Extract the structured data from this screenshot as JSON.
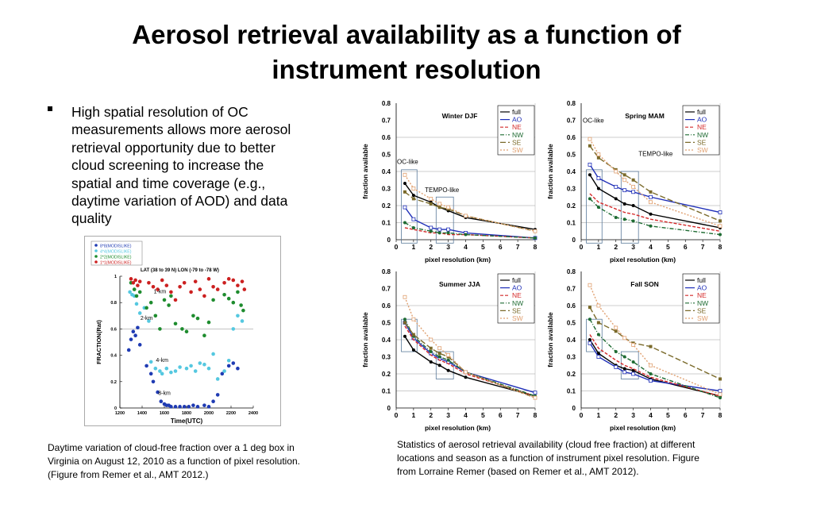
{
  "slide": {
    "title_lines": [
      "Aerosol retrieval availability as a function of",
      "instrument resolution"
    ],
    "bullet_lines": [
      "High spatial resolution of OC",
      "measurements allows more aerosol",
      "retrieval opportunity due to better",
      "cloud screening to increase the",
      "spatial and time coverage (e.g.,",
      "daytime variation of AOD) and data",
      "quality"
    ],
    "caption_left_lines": [
      "Daytime variation of cloud-free fraction over a 1 deg box in",
      "Virginia on August 12, 2010 as a function of pixel resolution.",
      "(Figure from Remer et al., AMT 2012.)"
    ],
    "caption_right_lines": [
      "Statistics of aerosol retrieval availability (cloud free fraction) at different",
      "locations and season as a function of instrument pixel resolution. Figure",
      "from Lorraine Remer (based on Remer et al., AMT 2012)."
    ]
  },
  "chart_data": [
    {
      "type": "scatter",
      "subtitle": "LAT (38 to 39 N) LON (-79 to -78 W)",
      "xlabel": "Time(UTC)",
      "ylabel": "FRACTION(Rat)",
      "xlim": [
        1200,
        2400
      ],
      "ylim": [
        0,
        1
      ],
      "x_ticks": [
        1200,
        1400,
        1600,
        1800,
        2000,
        2200,
        2400
      ],
      "y_ticks": [
        0,
        0.2,
        0.4,
        0.6,
        0.8,
        1
      ],
      "legend": [
        "8*8(MODISLIKE)",
        "4*4(MODISLIKE)",
        "2*2(MODISLIKE)",
        "1*1(MODISLIKE)"
      ],
      "annotations": [
        "1-km",
        "2-km",
        "4-km",
        "8-km"
      ],
      "series": [
        {
          "name": "8*8(MODISLIKE)",
          "color": "#1f3bb3",
          "x": [
            1280,
            1300,
            1320,
            1340,
            1360,
            1380,
            1440,
            1480,
            1500,
            1540,
            1570,
            1600,
            1620,
            1640,
            1660,
            1700,
            1740,
            1780,
            1820,
            1860,
            1900,
            1960,
            2000,
            2040,
            2080,
            2120,
            2180,
            2220,
            2260
          ],
          "y": [
            0.44,
            0.52,
            0.58,
            0.55,
            0.61,
            0.48,
            0.32,
            0.26,
            0.2,
            0.12,
            0.05,
            0.03,
            0.02,
            0.02,
            0.01,
            0.01,
            0.01,
            0.01,
            0.01,
            0.02,
            0.01,
            0.02,
            0.01,
            0.05,
            0.1,
            0.26,
            0.32,
            0.34,
            0.3
          ]
        },
        {
          "name": "4*4(MODISLIKE)",
          "color": "#55c8e0",
          "x": [
            1290,
            1310,
            1330,
            1350,
            1380,
            1420,
            1460,
            1480,
            1520,
            1560,
            1580,
            1620,
            1660,
            1700,
            1740,
            1800,
            1840,
            1880,
            1920,
            1960,
            2000,
            2040,
            2080,
            2140,
            2180,
            2220,
            2260,
            2300
          ],
          "y": [
            0.88,
            0.86,
            0.85,
            0.79,
            0.72,
            0.76,
            0.66,
            0.35,
            0.3,
            0.28,
            0.26,
            0.3,
            0.27,
            0.28,
            0.31,
            0.3,
            0.32,
            0.28,
            0.34,
            0.33,
            0.3,
            0.41,
            0.22,
            0.28,
            0.36,
            0.6,
            0.7,
            0.66
          ]
        },
        {
          "name": "2*2(MODISLIKE)",
          "color": "#1e8c2e",
          "x": [
            1300,
            1330,
            1350,
            1380,
            1440,
            1480,
            1520,
            1560,
            1600,
            1640,
            1660,
            1700,
            1760,
            1800,
            1860,
            1900,
            1960,
            2000,
            2040,
            2140,
            2180,
            2220,
            2260,
            2290,
            2310
          ],
          "y": [
            0.95,
            0.9,
            0.85,
            0.88,
            0.76,
            0.8,
            0.7,
            0.6,
            0.82,
            0.78,
            0.85,
            0.64,
            0.6,
            0.58,
            0.7,
            0.68,
            0.55,
            0.65,
            0.82,
            0.86,
            0.83,
            0.8,
            0.88,
            0.78,
            0.74
          ]
        },
        {
          "name": "1*1(MODISLIKE)",
          "color": "#cc2020",
          "x": [
            1300,
            1320,
            1340,
            1360,
            1380,
            1460,
            1500,
            1540,
            1580,
            1620,
            1660,
            1700,
            1740,
            1780,
            1840,
            1880,
            1920,
            1960,
            2000,
            2040,
            2080,
            2140,
            2180,
            2220,
            2260,
            2300,
            2320
          ],
          "y": [
            0.98,
            0.95,
            0.97,
            0.93,
            0.96,
            0.95,
            0.92,
            0.9,
            0.97,
            0.93,
            0.88,
            0.82,
            0.92,
            0.95,
            0.88,
            0.96,
            0.9,
            0.85,
            0.98,
            0.92,
            0.9,
            0.95,
            0.98,
            0.97,
            0.93,
            0.96,
            0.9
          ]
        }
      ]
    },
    {
      "type": "line",
      "panels": [
        {
          "title": "Winter DJF",
          "xlabel": "pixel resolution (km)",
          "ylabel": "fraction available",
          "xlim": [
            0,
            8
          ],
          "ylim": [
            0,
            0.8
          ],
          "x": [
            0.5,
            1,
            2,
            2.5,
            3,
            4,
            8
          ],
          "annotations": [
            "OC-like",
            "TEMPO-like"
          ],
          "series": [
            {
              "name": "full",
              "values": [
                0.33,
                0.26,
                0.22,
                0.19,
                0.17,
                0.13,
                0.06
              ]
            },
            {
              "name": "AO",
              "values": [
                0.19,
                0.12,
                0.07,
                0.06,
                0.06,
                0.04,
                0.01
              ]
            },
            {
              "name": "NE",
              "values": [
                0.07,
                0.06,
                0.04,
                0.04,
                0.03,
                0.03,
                0.01
              ]
            },
            {
              "name": "NW",
              "values": [
                0.1,
                0.07,
                0.05,
                0.04,
                0.04,
                0.03,
                0.01
              ]
            },
            {
              "name": "SE",
              "values": [
                0.28,
                0.24,
                0.21,
                0.19,
                0.18,
                0.14,
                0.05
              ]
            },
            {
              "name": "SW",
              "values": [
                0.38,
                0.3,
                0.24,
                0.21,
                0.19,
                0.14,
                0.05
              ]
            }
          ]
        },
        {
          "title": "Spring MAM",
          "xlabel": "pixel resolution (km)",
          "ylabel": "fraction available",
          "xlim": [
            0,
            8
          ],
          "ylim": [
            0,
            0.8
          ],
          "x": [
            0.5,
            1,
            2,
            2.5,
            3,
            4,
            8
          ],
          "annotations": [
            "OC-like",
            "TEMPO-like"
          ],
          "series": [
            {
              "name": "full",
              "values": [
                0.38,
                0.3,
                0.24,
                0.21,
                0.2,
                0.15,
                0.07
              ]
            },
            {
              "name": "AO",
              "values": [
                0.44,
                0.36,
                0.31,
                0.29,
                0.28,
                0.25,
                0.16
              ]
            },
            {
              "name": "NE",
              "values": [
                0.27,
                0.22,
                0.18,
                0.16,
                0.15,
                0.12,
                0.05
              ]
            },
            {
              "name": "NW",
              "values": [
                0.24,
                0.19,
                0.13,
                0.12,
                0.11,
                0.08,
                0.03
              ]
            },
            {
              "name": "SE",
              "values": [
                0.55,
                0.48,
                0.41,
                0.38,
                0.35,
                0.28,
                0.11
              ]
            },
            {
              "name": "SW",
              "values": [
                0.59,
                0.5,
                0.4,
                0.35,
                0.31,
                0.22,
                0.08
              ]
            }
          ]
        },
        {
          "title": "Summer JJA",
          "xlabel": "pixel resolution (km)",
          "ylabel": "fraction available",
          "xlim": [
            0,
            8
          ],
          "ylim": [
            0,
            0.8
          ],
          "x": [
            0.5,
            1,
            2,
            2.5,
            3,
            4,
            8
          ],
          "series": [
            {
              "name": "full",
              "values": [
                0.42,
                0.34,
                0.27,
                0.25,
                0.22,
                0.18,
                0.07
              ]
            },
            {
              "name": "AO",
              "values": [
                0.5,
                0.41,
                0.32,
                0.29,
                0.27,
                0.21,
                0.09
              ]
            },
            {
              "name": "NE",
              "values": [
                0.48,
                0.4,
                0.31,
                0.28,
                0.26,
                0.2,
                0.07
              ]
            },
            {
              "name": "NW",
              "values": [
                0.52,
                0.42,
                0.33,
                0.3,
                0.28,
                0.21,
                0.07
              ]
            },
            {
              "name": "SE",
              "values": [
                0.5,
                0.43,
                0.35,
                0.32,
                0.3,
                0.21,
                0.06
              ]
            },
            {
              "name": "SW",
              "values": [
                0.65,
                0.52,
                0.4,
                0.35,
                0.31,
                0.21,
                0.06
              ]
            }
          ]
        },
        {
          "title": "Fall SON",
          "xlabel": "pixel resolution (km)",
          "ylabel": "fraction available",
          "xlim": [
            0,
            8
          ],
          "ylim": [
            0,
            0.8
          ],
          "x": [
            0.5,
            1,
            2,
            2.5,
            3,
            4,
            8
          ],
          "series": [
            {
              "name": "full",
              "values": [
                0.4,
                0.32,
                0.25,
                0.23,
                0.22,
                0.17,
                0.07
              ]
            },
            {
              "name": "AO",
              "values": [
                0.38,
                0.3,
                0.24,
                0.21,
                0.2,
                0.16,
                0.1
              ]
            },
            {
              "name": "NE",
              "values": [
                0.43,
                0.35,
                0.28,
                0.25,
                0.23,
                0.18,
                0.07
              ]
            },
            {
              "name": "NW",
              "values": [
                0.52,
                0.43,
                0.33,
                0.3,
                0.27,
                0.2,
                0.06
              ]
            },
            {
              "name": "SE",
              "values": [
                0.59,
                0.5,
                0.45,
                0.41,
                0.38,
                0.36,
                0.17
              ]
            },
            {
              "name": "SW",
              "values": [
                0.72,
                0.6,
                0.47,
                0.41,
                0.37,
                0.25,
                0.08
              ]
            }
          ]
        }
      ]
    }
  ],
  "style": {
    "series_colors": {
      "full": "#000000",
      "AO": "#1f2fb8",
      "NE": "#d42a2a",
      "NW": "#1e6b32",
      "SE": "#7a6a2a",
      "SW": "#e0a070"
    },
    "series_dash": {
      "full": "",
      "AO": "",
      "NE": "4,2",
      "NW": "5,2,1,2",
      "SE": "7,3",
      "SW": "2,2"
    },
    "series_marker": {
      "full": "dot",
      "AO": "square-open",
      "NE": "none",
      "NW": "dot",
      "SE": "square",
      "SW": "square-open"
    }
  }
}
